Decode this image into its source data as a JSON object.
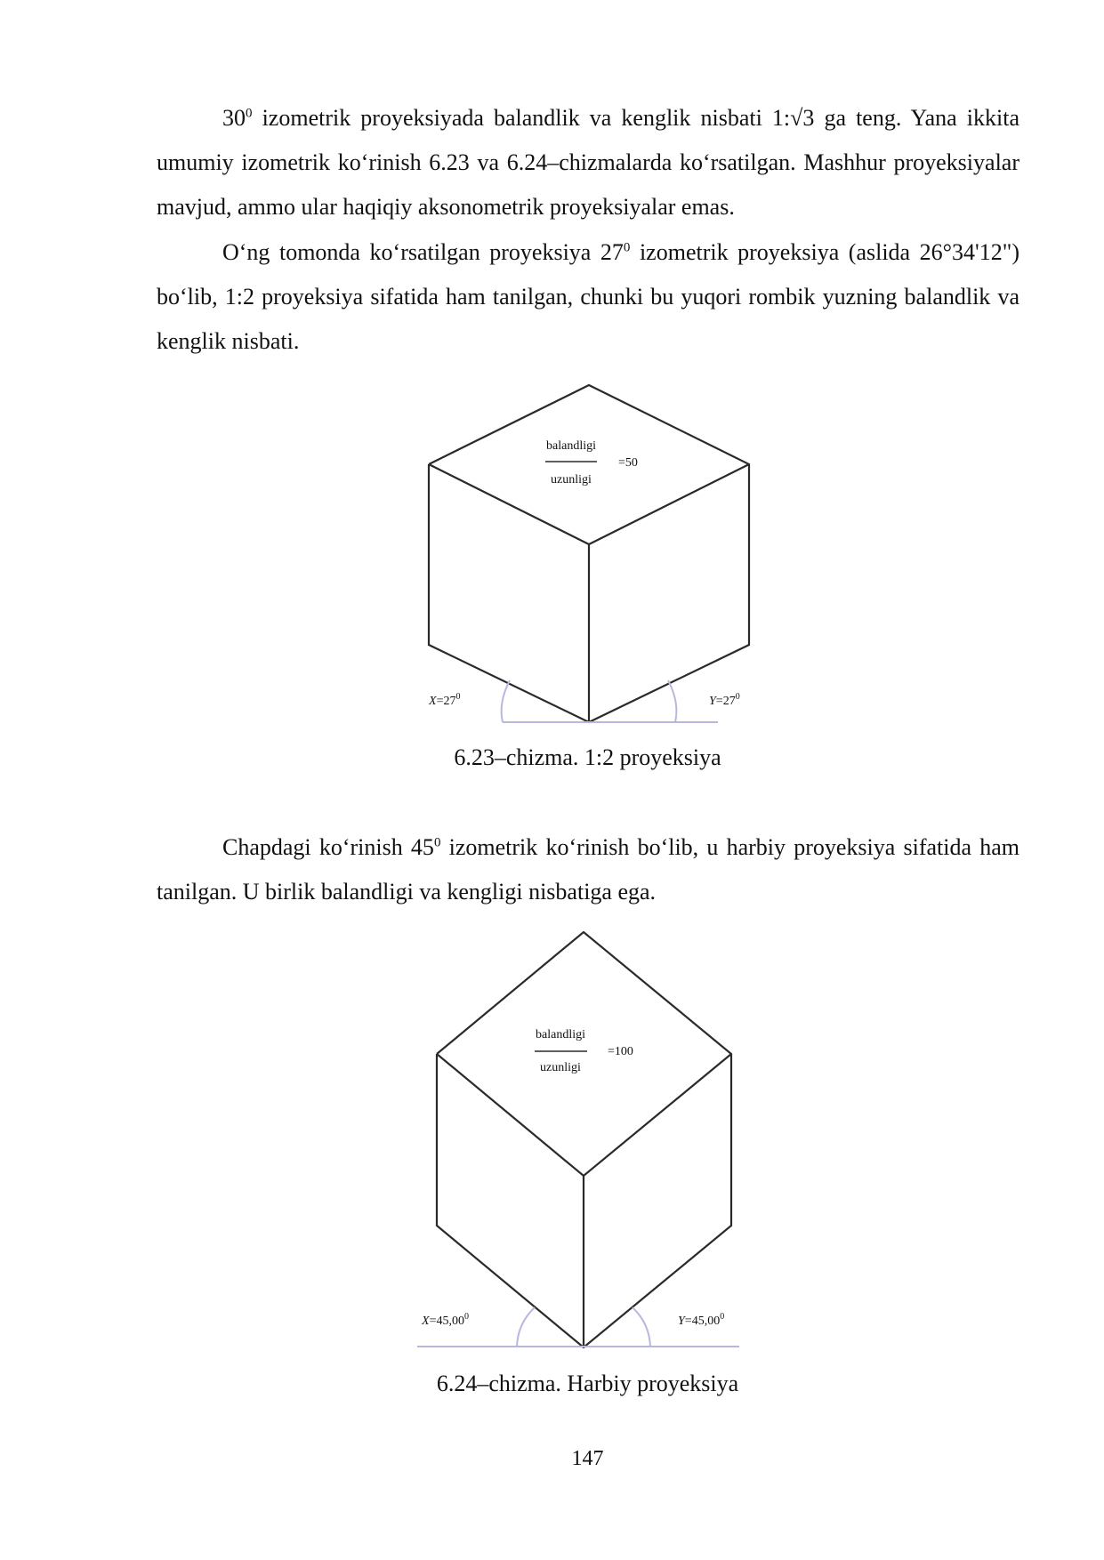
{
  "paragraphs": [
    {
      "lead": "30",
      "sup": "0",
      "rest": " izometrik proyeksiyada balandlik va kenglik nisbati 1:√3 ga teng. Yana ikkita umumiy izometrik ko‘rinish 6.23 va 6.24–chizmalarda ko‘rsatilgan. Mashhur proyeksiyalar mavjud, ammo ular haqiqiy aksonometrik proyeksiyalar emas."
    },
    {
      "lead": "O‘ng tomonda ko‘rsatilgan proyeksiya 27",
      "sup": "0",
      "rest": " izometrik proyeksiya (aslida 26°34'12\") bo‘lib, 1:2 proyeksiya sifatida ham tanilgan, chunki bu yuqori rombik yuzning balandlik va kenglik nisbati."
    },
    {
      "lead": "Chapdagi ko‘rinish 45",
      "sup": "0",
      "rest": " izometrik ko‘rinish bo‘lib, u harbiy proyeksiya sifatida ham tanilgan. U birlik balandligi va kengligi nisbatiga ega."
    }
  ],
  "figure_1": {
    "numerator": "balandligi",
    "denominator": "uzunligi",
    "ratio": "=50",
    "x_letter": "X",
    "x_value": "=27",
    "x_sup": "0",
    "y_letter": "Y",
    "y_value": "=27",
    "y_sup": "0",
    "caption": "6.23–chizma. 1:2 proyeksiya"
  },
  "figure_2": {
    "numerator": "balandligi",
    "denominator": "uzunligi",
    "ratio": "=100",
    "x_letter": "X",
    "x_value": "=45,00",
    "x_sup": "0",
    "y_letter": "Y",
    "y_value": "=45,00",
    "y_sup": "0",
    "caption": "6.24–chizma. Harbiy proyeksiya"
  },
  "page_number": "147",
  "colors": {
    "line": "#2a2a2a",
    "baseline": "#b8b8de",
    "text": "#111111"
  }
}
